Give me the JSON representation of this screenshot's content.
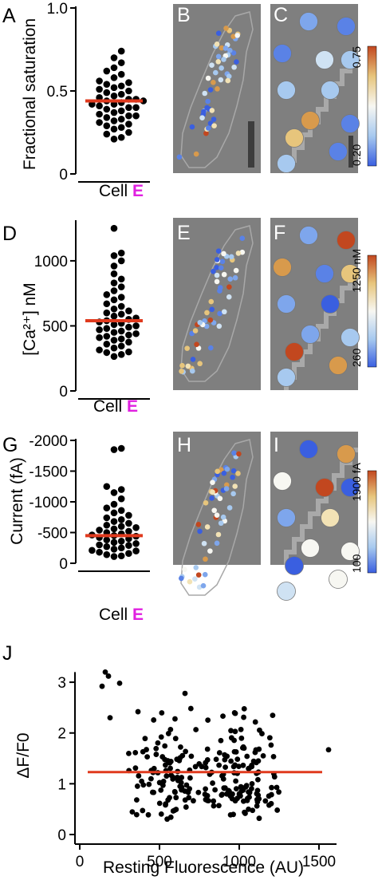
{
  "figure": {
    "panels": {
      "A": "A",
      "B": "B",
      "C": "C",
      "D": "D",
      "E": "E",
      "F": "F",
      "G": "G",
      "H": "H",
      "I": "I",
      "J": "J"
    },
    "colors": {
      "image_bg": "#7f7f7f",
      "median_line": "#e03a1e",
      "cell_letter": "#e020e0",
      "outline": "#a8a8a8",
      "scale_bar": "#3d3d3d"
    }
  },
  "chart_data": [
    {
      "type": "scatter",
      "panel": "A",
      "ylabel": "Fractional saturation",
      "xlabel": "Cell",
      "cell_letter": "E",
      "ylim": [
        0,
        1.0
      ],
      "yticks": [
        {
          "v": 0,
          "t": "0"
        },
        {
          "v": 0.5,
          "t": "0.5"
        },
        {
          "v": 1.0,
          "t": "1.0"
        }
      ],
      "median": 0.44,
      "y": [
        0.21,
        0.22,
        0.24,
        0.25,
        0.27,
        0.28,
        0.29,
        0.3,
        0.31,
        0.32,
        0.33,
        0.34,
        0.35,
        0.35,
        0.36,
        0.37,
        0.38,
        0.39,
        0.4,
        0.4,
        0.41,
        0.42,
        0.42,
        0.43,
        0.44,
        0.44,
        0.45,
        0.45,
        0.46,
        0.47,
        0.48,
        0.49,
        0.5,
        0.51,
        0.52,
        0.53,
        0.54,
        0.55,
        0.56,
        0.58,
        0.6,
        0.62,
        0.64,
        0.67,
        0.7,
        0.74
      ]
    },
    {
      "type": "scatter",
      "panel": "D",
      "ylabel": "[Ca²⁺] nM",
      "xlabel": "Cell",
      "cell_letter": "E",
      "ylim": [
        0,
        1300
      ],
      "yticks": [
        {
          "v": 0,
          "t": "0"
        },
        {
          "v": 500,
          "t": "500"
        },
        {
          "v": 1000,
          "t": "1000"
        }
      ],
      "median": 540,
      "y": [
        265,
        280,
        295,
        300,
        315,
        330,
        345,
        360,
        375,
        390,
        400,
        410,
        420,
        430,
        440,
        450,
        460,
        470,
        480,
        490,
        500,
        510,
        520,
        530,
        540,
        550,
        560,
        575,
        590,
        600,
        615,
        630,
        650,
        670,
        700,
        720,
        740,
        770,
        800,
        830,
        860,
        900,
        960,
        1000,
        1040,
        1060,
        1250
      ]
    },
    {
      "type": "scatter",
      "panel": "G",
      "ylabel": "Current (fA)",
      "xlabel": "Cell",
      "cell_letter": "E",
      "ylim": [
        0,
        -2000
      ],
      "yticks": [
        {
          "v": 0,
          "t": "0"
        },
        {
          "v": -500,
          "t": "-500"
        },
        {
          "v": -1000,
          "t": "-1000"
        },
        {
          "v": -1500,
          "t": "-1500"
        },
        {
          "v": -2000,
          "t": "-2000"
        }
      ],
      "median": -450,
      "y": [
        -110,
        -120,
        -140,
        -160,
        -180,
        -200,
        -210,
        -230,
        -250,
        -270,
        -290,
        -300,
        -320,
        -340,
        -360,
        -380,
        -400,
        -420,
        -440,
        -450,
        -460,
        -480,
        -500,
        -520,
        -540,
        -560,
        -580,
        -600,
        -620,
        -650,
        -680,
        -710,
        -740,
        -780,
        -820,
        -860,
        -900,
        -960,
        -1050,
        -1150,
        -1200,
        -1250,
        -1850,
        -1870
      ]
    },
    {
      "type": "scatter",
      "panel": "J",
      "ylabel": "ΔF/F0",
      "xlabel": "Resting Fluorescence (AU)",
      "xlim": [
        0,
        1600
      ],
      "ylim": [
        0,
        3.3
      ],
      "xticks": [
        {
          "v": 0,
          "t": "0"
        },
        {
          "v": 500,
          "t": "500"
        },
        {
          "v": 1000,
          "t": "1000"
        },
        {
          "v": 1500,
          "t": "1500"
        }
      ],
      "yticks": [
        {
          "v": 0,
          "t": "0"
        },
        {
          "v": 1,
          "t": "1"
        },
        {
          "v": 2,
          "t": "2"
        },
        {
          "v": 3,
          "t": "3"
        }
      ],
      "fit": {
        "x": [
          0,
          1600
        ],
        "y": [
          1.23,
          1.23
        ]
      },
      "highlights": [
        [
          160,
          3.2
        ],
        [
          180,
          3.12
        ],
        [
          140,
          2.92
        ],
        [
          250,
          2.98
        ],
        [
          190,
          2.3
        ],
        [
          660,
          2.78
        ],
        [
          1560,
          1.67
        ],
        [
          1000,
          0.8
        ],
        [
          1080,
          1.0
        ]
      ]
    }
  ],
  "image_panels": [
    {
      "panel": "B",
      "type": "cell_map",
      "zoom": false
    },
    {
      "panel": "C",
      "type": "cell_map",
      "zoom": true,
      "colorbar": {
        "min": "0.20",
        "max": "0.75"
      }
    },
    {
      "panel": "E",
      "type": "cell_map",
      "zoom": false
    },
    {
      "panel": "F",
      "type": "cell_map",
      "zoom": true,
      "colorbar": {
        "min": "260",
        "max": "1250 nM"
      }
    },
    {
      "panel": "H",
      "type": "cell_map",
      "zoom": false
    },
    {
      "panel": "I",
      "type": "cell_map",
      "zoom": true,
      "colorbar": {
        "min": "100",
        "max": "1900 fA"
      }
    }
  ]
}
